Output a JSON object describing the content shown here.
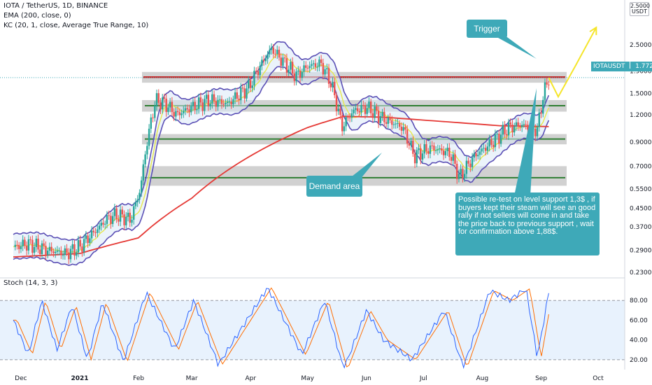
{
  "header": {
    "symbol_line": "IOTA / TetherUS, 1D, BINANCE",
    "ema_line": "EMA (200, close, 0)",
    "kc_line": "KC (20, 1, close, Average True Range, 10)",
    "stoch_line": "Stoch (14, 3, 3)"
  },
  "unit_box": {
    "top": "2.5000",
    "bottom": "USDT"
  },
  "price_tag": {
    "symbol": "IOTAUSDT",
    "price": "1.7721"
  },
  "colors": {
    "up": "#26a69a",
    "down": "#ef5350",
    "ema": "#e53935",
    "kc_band": "#5b4fb5",
    "kc_mid": "#e8e84a",
    "support": "#2e7d32",
    "resistance": "#c62828",
    "zone": "#c9c9c9",
    "callout": "#3ea9b8",
    "arrow": "#f5e52a",
    "stoch_k": "#2962ff",
    "stoch_d": "#ff6d00"
  },
  "annotations": {
    "trigger": "Trigger",
    "demand": "Demand area",
    "note": "Possible re-test on level support 1,3$ , if buyers kept their steam will see an good rally if not sellers will come in and take the price back to previous support , wait for confirmation above 1,88$."
  },
  "chart_data": {
    "type": "line",
    "title": "IOTA / TetherUS, 1D, BINANCE",
    "y_scale": "log",
    "ylim": [
      0.22,
      4.0
    ],
    "price_ticks": [
      "2.5000",
      "1.9000",
      "1.5000",
      "1.2000",
      "0.9000",
      "0.7000",
      "0.5500",
      "0.4500",
      "0.3700",
      "0.2900",
      "0.2300"
    ],
    "x_ticks": [
      "Dec",
      "2021",
      "Feb",
      "Mar",
      "Apr",
      "May",
      "Jun",
      "Jul",
      "Aug",
      "Sep",
      "Oct"
    ],
    "stoch_ticks": [
      "80.00",
      "60.00",
      "40.00",
      "20.00"
    ],
    "stoch_ylim": [
      10,
      100
    ],
    "levels": [
      {
        "name": "resistance",
        "value": 1.78
      },
      {
        "name": "support",
        "value": 1.32
      },
      {
        "name": "support",
        "value": 0.93
      },
      {
        "name": "support",
        "value": 0.62
      }
    ],
    "zones": [
      [
        1.68,
        1.88
      ],
      [
        1.24,
        1.4
      ],
      [
        0.88,
        0.98
      ],
      [
        0.57,
        0.7
      ]
    ],
    "last_price": 1.7721,
    "series": [
      {
        "name": "IOTAUSDT",
        "points": [
          [
            "2020-11-27",
            0.3
          ],
          [
            "2020-12-05",
            0.31
          ],
          [
            "2020-12-15",
            0.29
          ],
          [
            "2020-12-25",
            0.28
          ],
          [
            "2021-01-01",
            0.3
          ],
          [
            "2021-01-10",
            0.36
          ],
          [
            "2021-01-15",
            0.4
          ],
          [
            "2021-01-20",
            0.42
          ],
          [
            "2021-01-28",
            0.4
          ],
          [
            "2021-02-02",
            0.55
          ],
          [
            "2021-02-06",
            0.95
          ],
          [
            "2021-02-10",
            1.4
          ],
          [
            "2021-02-15",
            1.35
          ],
          [
            "2021-02-21",
            1.2
          ],
          [
            "2021-03-01",
            1.3
          ],
          [
            "2021-03-10",
            1.4
          ],
          [
            "2021-03-20",
            1.35
          ],
          [
            "2021-03-31",
            1.6
          ],
          [
            "2021-04-06",
            2.0
          ],
          [
            "2021-04-12",
            2.4
          ],
          [
            "2021-04-18",
            2.1
          ],
          [
            "2021-04-25",
            1.8
          ],
          [
            "2021-05-01",
            2.0
          ],
          [
            "2021-05-08",
            2.05
          ],
          [
            "2021-05-13",
            1.7
          ],
          [
            "2021-05-19",
            1.05
          ],
          [
            "2021-05-25",
            1.25
          ],
          [
            "2021-06-01",
            1.3
          ],
          [
            "2021-06-10",
            1.15
          ],
          [
            "2021-06-20",
            1.05
          ],
          [
            "2021-06-26",
            0.78
          ],
          [
            "2021-07-05",
            0.85
          ],
          [
            "2021-07-15",
            0.8
          ],
          [
            "2021-07-20",
            0.62
          ],
          [
            "2021-07-28",
            0.78
          ],
          [
            "2021-08-05",
            0.88
          ],
          [
            "2021-08-15",
            1.05
          ],
          [
            "2021-08-22",
            1.08
          ],
          [
            "2021-08-30",
            1.02
          ],
          [
            "2021-09-02",
            1.45
          ],
          [
            "2021-09-05",
            1.77
          ]
        ]
      },
      {
        "name": "EMA (200, close, 0)",
        "points": [
          [
            "2020-11-27",
            0.27
          ],
          [
            "2021-01-01",
            0.28
          ],
          [
            "2021-02-01",
            0.33
          ],
          [
            "2021-03-01",
            0.5
          ],
          [
            "2021-04-01",
            0.78
          ],
          [
            "2021-05-01",
            1.05
          ],
          [
            "2021-05-20",
            1.18
          ],
          [
            "2021-06-10",
            1.17
          ],
          [
            "2021-07-10",
            1.12
          ],
          [
            "2021-08-10",
            1.07
          ],
          [
            "2021-09-05",
            1.06
          ]
        ]
      },
      {
        "name": "Projection",
        "points": [
          [
            "2021-09-05",
            1.77
          ],
          [
            "2021-09-10",
            1.45
          ],
          [
            "2021-09-19",
            2.0
          ],
          [
            "2021-09-30",
            3.0
          ]
        ]
      }
    ],
    "stochastic": {
      "name": "Stoch (14, 3, 3)",
      "points": [
        [
          "2020-11-27",
          60
        ],
        [
          "2020-12-05",
          25
        ],
        [
          "2020-12-12",
          80
        ],
        [
          "2020-12-20",
          30
        ],
        [
          "2020-12-28",
          75
        ],
        [
          "2021-01-05",
          20
        ],
        [
          "2021-01-13",
          78
        ],
        [
          "2021-01-24",
          18
        ],
        [
          "2021-02-05",
          88
        ],
        [
          "2021-02-20",
          30
        ],
        [
          "2021-03-02",
          80
        ],
        [
          "2021-03-15",
          15
        ],
        [
          "2021-04-10",
          93
        ],
        [
          "2021-04-28",
          25
        ],
        [
          "2021-05-10",
          80
        ],
        [
          "2021-05-20",
          10
        ],
        [
          "2021-06-01",
          70
        ],
        [
          "2021-06-10",
          40
        ],
        [
          "2021-06-25",
          20
        ],
        [
          "2021-07-12",
          70
        ],
        [
          "2021-07-22",
          12
        ],
        [
          "2021-08-05",
          90
        ],
        [
          "2021-08-15",
          80
        ],
        [
          "2021-08-24",
          92
        ],
        [
          "2021-08-30",
          22
        ],
        [
          "2021-09-05",
          88
        ]
      ]
    }
  }
}
